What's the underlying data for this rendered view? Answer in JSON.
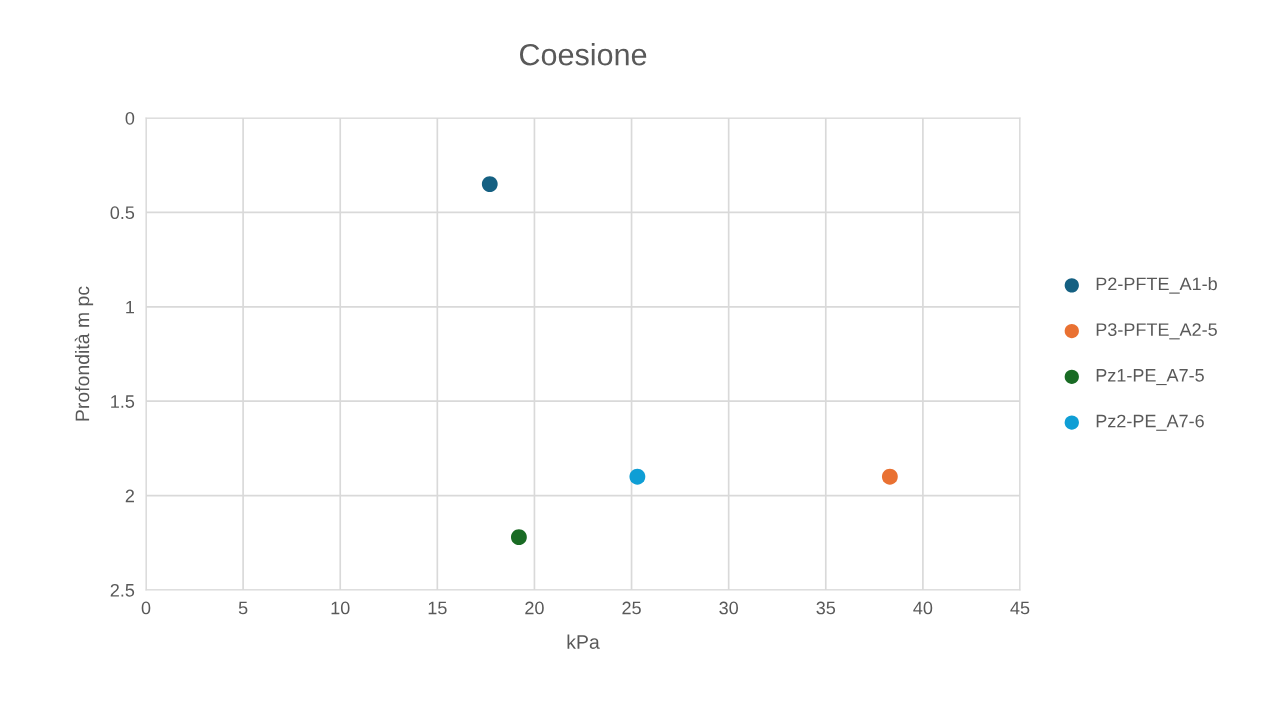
{
  "chart_data": {
    "type": "scatter",
    "title": "Coesione",
    "xlabel": "kPa",
    "ylabel": "Profondità m pc",
    "series": [
      {
        "name": "P2-PFTE_A1-b",
        "color": "#156082",
        "x": [
          17.7
        ],
        "values": [
          0.35
        ]
      },
      {
        "name": "P3-PFTE_A2-5",
        "color": "#e97132",
        "x": [
          38.3
        ],
        "values": [
          1.9
        ]
      },
      {
        "name": "Pz1-PE_A7-5",
        "color": "#196b24",
        "x": [
          19.2
        ],
        "values": [
          2.22
        ]
      },
      {
        "name": "Pz2-PE_A7-6",
        "color": "#0f9ed5",
        "x": [
          25.3
        ],
        "values": [
          1.9
        ]
      }
    ],
    "xlim": [
      0,
      45
    ],
    "xticks": [
      0,
      5,
      10,
      15,
      20,
      25,
      30,
      35,
      40,
      45
    ],
    "ylim": [
      2.5,
      0
    ],
    "yticks": [
      0,
      0.5,
      1,
      1.5,
      2,
      2.5
    ],
    "grid": true,
    "legend": "right",
    "marker": "circle"
  }
}
